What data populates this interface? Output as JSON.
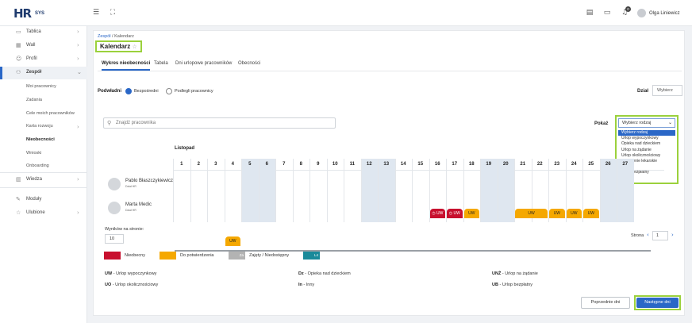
{
  "topbar": {
    "logo_hr": "HR",
    "logo_sys": "SYS",
    "notifications_count": "0",
    "user_name": "Olga Liniewicz"
  },
  "sidebar": {
    "items": [
      {
        "label": "Tablica"
      },
      {
        "label": "Wall"
      },
      {
        "label": "Profil"
      },
      {
        "label": "Zespół"
      },
      {
        "label": "Wiedza"
      },
      {
        "label": "Moduły"
      },
      {
        "label": "Ulubione"
      }
    ],
    "sub_items": [
      "Moi pracownicy",
      "Zadania",
      "Cele moich pracowników",
      "Karta rozwoju",
      "Nieobecności",
      "Wnioski",
      "Onboarding"
    ]
  },
  "breadcrumb": {
    "parent": "Zespół",
    "sep": "/",
    "current": "Kalendarz"
  },
  "page_title": "Kalendarz",
  "tabs": [
    "Wykres nieobecności",
    "Tabela",
    "Dni urlopowe pracowników",
    "Obecności"
  ],
  "filters": {
    "podwladni_label": "Podwładni",
    "radio1": "Bezpośredni",
    "radio2": "Podlegli pracownicy",
    "dzial_label": "Dział",
    "dzial_value": "Wybierz"
  },
  "search": {
    "placeholder": "Znajdź pracownika"
  },
  "pokaz": {
    "label": "Pokaż",
    "selected": "Wybierz rodzaj",
    "options": [
      "Wybierz rodzaj",
      "Urlop wypoczynkowy",
      "Opieka nad dzieckiem",
      "Urlop na żądanie",
      "Urlop okolicznościowy",
      "Zwolnienie lekarskie",
      "Inny",
      "Urlop bezpłatny"
    ]
  },
  "calendar": {
    "month": "Listopad",
    "days": [
      "1",
      "2",
      "3",
      "4",
      "5",
      "6",
      "7",
      "8",
      "9",
      "10",
      "11",
      "12",
      "13",
      "14",
      "15",
      "16",
      "17",
      "18",
      "19",
      "20",
      "21",
      "22",
      "23",
      "24",
      "25",
      "26",
      "27"
    ],
    "weekend_days": [
      5,
      6,
      12,
      13,
      19,
      20,
      26,
      27
    ],
    "employees": [
      {
        "name": "Pablo Błaszczykiewicz",
        "dept": "Dział HR"
      },
      {
        "name": "Marta Medic",
        "dept": "Dział HR"
      }
    ],
    "blocks": [
      {
        "row": 0,
        "day": 16,
        "span": 1,
        "status": "red",
        "label": "◷ UW"
      },
      {
        "row": 0,
        "day": 17,
        "span": 1,
        "status": "red",
        "label": "◷ UW"
      },
      {
        "row": 0,
        "day": 18,
        "span": 1,
        "status": "orange",
        "label": "UW"
      },
      {
        "row": 0,
        "day": 21,
        "span": 2,
        "status": "orange",
        "label": "UW"
      },
      {
        "row": 0,
        "day": 23,
        "span": 1,
        "status": "orange",
        "label": "UW"
      },
      {
        "row": 0,
        "day": 24,
        "span": 1,
        "status": "orange",
        "label": "UW"
      },
      {
        "row": 0,
        "day": 25,
        "span": 1,
        "status": "orange",
        "label": "UW"
      },
      {
        "row": 1,
        "day": 4,
        "span": 1,
        "status": "orange",
        "label": "UW"
      }
    ]
  },
  "pagination": {
    "per_page_label": "Wyników na stronie:",
    "per_page": "10",
    "page_label": "Strona",
    "page": "1"
  },
  "legend": [
    {
      "label": "Nieobecny",
      "color": "#c8102e",
      "tag": ""
    },
    {
      "label": "Do potwierdzenia",
      "color": "#f5a800",
      "tag": ""
    },
    {
      "label": "Zajęty / Niedostępny",
      "color": "#b3b3b3",
      "tag": "Za"
    },
    {
      "label": "",
      "color": "#1a8a9a",
      "tag": "L4"
    }
  ],
  "abbreviations": [
    {
      "code": "UW",
      "desc": "- Urlop wypoczynkowy"
    },
    {
      "code": "Dz",
      "desc": "- Opieka nad dzieckiem"
    },
    {
      "code": "UNŻ",
      "desc": "- Urlop na żądanie"
    },
    {
      "code": "UO",
      "desc": "- Urlop okolicznościowy"
    },
    {
      "code": "In",
      "desc": "- Inny"
    },
    {
      "code": "UB",
      "desc": "- Urlop bezpłatny"
    }
  ],
  "buttons": {
    "prev": "Poprzednie dni",
    "next": "Następne dni"
  },
  "colors": {
    "accent": "#2a67c7",
    "highlight": "#9bd13c",
    "weekend": "#dfe7f0"
  }
}
